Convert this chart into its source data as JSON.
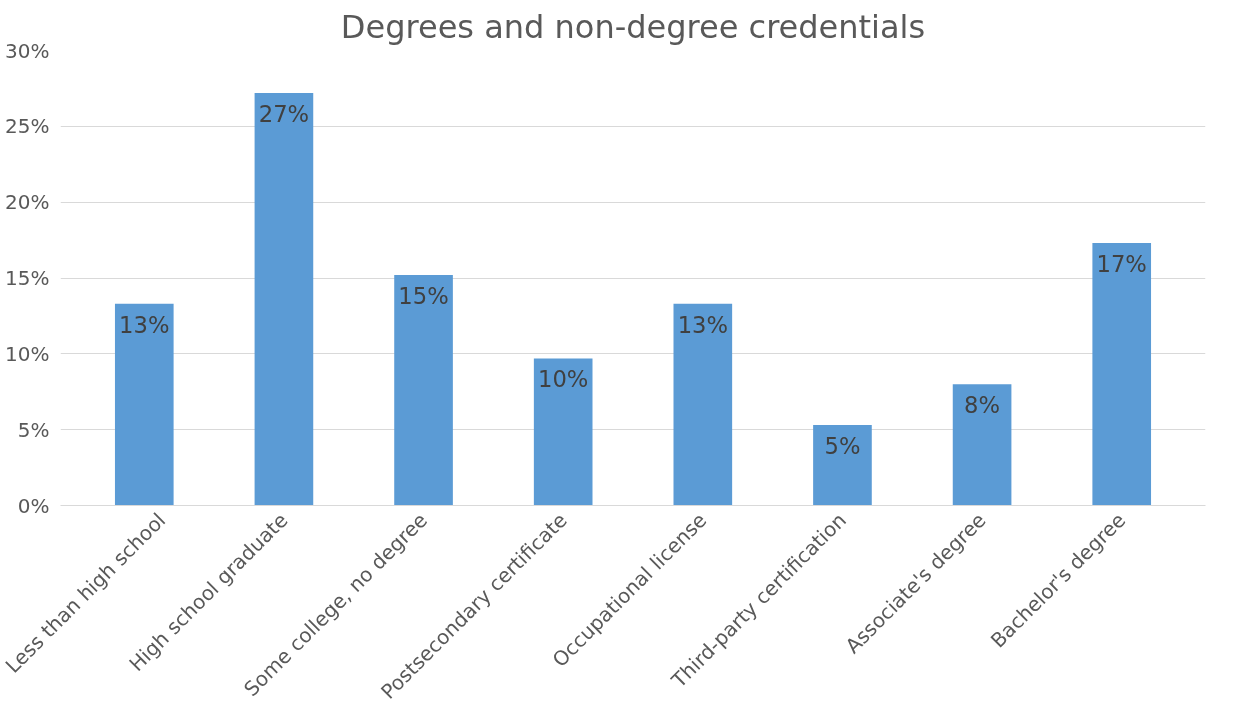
{
  "chart_data": {
    "type": "bar",
    "title": "Degrees and non-degree credentials",
    "categories": [
      "Less than high school",
      "High school graduate",
      "Some college, no degree",
      "Postsecondary certificate",
      "Occupational license",
      "Third-party certification",
      "Associate's degree",
      "Bachelor's degree"
    ],
    "values": [
      13.3,
      27.2,
      15.2,
      9.7,
      13.3,
      5.3,
      8.0,
      17.3
    ],
    "value_labels": [
      "13%",
      "27%",
      "15%",
      "10%",
      "13%",
      "5%",
      "8%",
      "17%"
    ],
    "color": "#5b9bd5",
    "ylim": [
      0,
      30
    ],
    "yticks": [
      {
        "value": 0,
        "label": "0%"
      },
      {
        "value": 5,
        "label": "5%"
      },
      {
        "value": 10,
        "label": "10%"
      },
      {
        "value": 15,
        "label": "15%"
      },
      {
        "value": 20,
        "label": "20%"
      },
      {
        "value": 25,
        "label": "25%"
      },
      {
        "value": 30,
        "label": "30%"
      }
    ],
    "grid": "y"
  }
}
